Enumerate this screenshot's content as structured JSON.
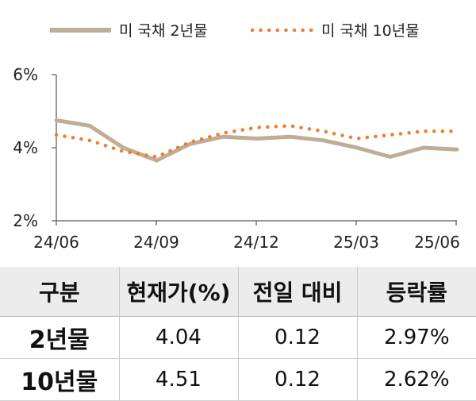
{
  "chart_data": {
    "type": "line",
    "legend": {
      "position": "top",
      "items": [
        "미 국채 2년물",
        "미 국채 10년물"
      ]
    },
    "x_ticks": [
      "24/06",
      "24/09",
      "24/12",
      "25/03",
      "25/06"
    ],
    "y_ticks": [
      "2%",
      "4%",
      "6%"
    ],
    "ylim": [
      2,
      6
    ],
    "grid": false,
    "x": [
      "24/06",
      "24/07",
      "24/08",
      "24/09",
      "24/10",
      "24/11",
      "24/12",
      "25/01",
      "25/02",
      "25/03",
      "25/04",
      "25/05",
      "25/06"
    ],
    "series": [
      {
        "name": "미 국채 2년물",
        "color": "#bfae95",
        "style": "solid",
        "values": [
          4.75,
          4.6,
          4.0,
          3.65,
          4.1,
          4.3,
          4.25,
          4.3,
          4.2,
          4.0,
          3.75,
          4.0,
          3.95
        ]
      },
      {
        "name": "미 국채 10년물",
        "color": "#ee7f2d",
        "style": "dotted",
        "values": [
          4.35,
          4.2,
          3.9,
          3.75,
          4.15,
          4.4,
          4.55,
          4.6,
          4.45,
          4.25,
          4.35,
          4.45,
          4.45
        ]
      }
    ],
    "colors": {
      "axis": "#555555"
    }
  },
  "table": {
    "headers": [
      "구분",
      "현재가(%)",
      "전일 대비",
      "등락률"
    ],
    "rows": [
      {
        "label": "2년물",
        "price": "4.04",
        "change": "0.12",
        "pct": "2.97%"
      },
      {
        "label": "10년물",
        "price": "4.51",
        "change": "0.12",
        "pct": "2.62%"
      }
    ]
  }
}
